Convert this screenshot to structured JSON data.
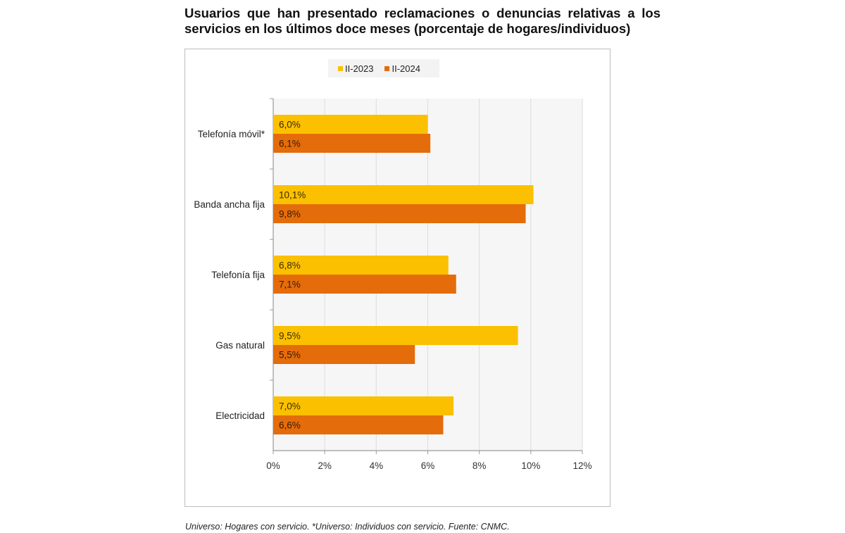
{
  "title": "Usuarios que han presentado reclamaciones o denuncias relativas a los servicios en los últimos doce meses (porcentaje de hogares/individuos)",
  "footnote": "Universo: Hogares con servicio. *Universo: Individuos con servicio. Fuente: CNMC.",
  "colors": {
    "II-2023": "#FBC000",
    "II-2024": "#E46C0A",
    "plot_bg": "#F7F6F6",
    "grid": "#E2E0E0"
  },
  "chart_data": {
    "type": "bar",
    "orientation": "horizontal",
    "title": "Usuarios que han presentado reclamaciones o denuncias relativas a los servicios en los últimos doce meses (porcentaje de hogares/individuos)",
    "categories": [
      "Telefonía móvil*",
      "Banda ancha fija",
      "Telefonía fija",
      "Gas natural",
      "Electricidad"
    ],
    "series": [
      {
        "name": "II-2023",
        "values": [
          6.0,
          10.1,
          6.8,
          9.5,
          7.0
        ],
        "labels": [
          "6,0%",
          "10,1%",
          "6,8%",
          "9,5%",
          "7,0%"
        ]
      },
      {
        "name": "II-2024",
        "values": [
          6.1,
          9.8,
          7.1,
          5.5,
          6.6
        ],
        "labels": [
          "6,1%",
          "9,8%",
          "7,1%",
          "5,5%",
          "6,6%"
        ]
      }
    ],
    "xlabel": "",
    "ylabel": "",
    "xlim": [
      0,
      12
    ],
    "xticks": [
      0,
      2,
      4,
      6,
      8,
      10,
      12
    ],
    "xtick_labels": [
      "0%",
      "2%",
      "4%",
      "6%",
      "8%",
      "10%",
      "12%"
    ],
    "grid": true,
    "legend_position": "top-center"
  }
}
